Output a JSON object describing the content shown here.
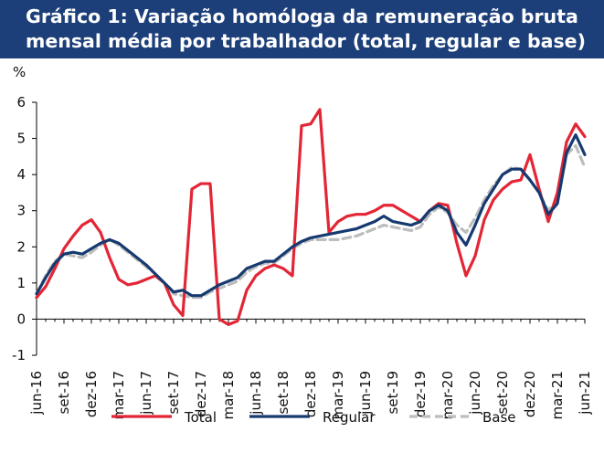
{
  "title": {
    "line1": "Gráfico 1: Variação homóloga da remuneração bruta",
    "line2": "mensal média por trabalhador (total, regular e base)"
  },
  "chart_data": {
    "type": "line",
    "ylabel": "%",
    "ylim": [
      -1,
      6
    ],
    "yticks": [
      -1,
      0,
      1,
      2,
      3,
      4,
      5,
      6
    ],
    "grid": false,
    "legend_position": "bottom",
    "x_tick_labels": [
      "jun-16",
      "set-16",
      "dez-16",
      "mar-17",
      "jun-17",
      "set-17",
      "dez-17",
      "mar-18",
      "jun-18",
      "set-18",
      "dez-18",
      "mar-19",
      "jun-19",
      "set-19",
      "dez-19",
      "mar-20",
      "jun-20",
      "set-20",
      "dez-20",
      "mar-21",
      "jun-21"
    ],
    "x": [
      "jun-16",
      "jul-16",
      "ago-16",
      "set-16",
      "out-16",
      "nov-16",
      "dez-16",
      "jan-17",
      "fev-17",
      "mar-17",
      "abr-17",
      "mai-17",
      "jun-17",
      "jul-17",
      "ago-17",
      "set-17",
      "out-17",
      "nov-17",
      "dez-17",
      "jan-18",
      "fev-18",
      "mar-18",
      "abr-18",
      "mai-18",
      "jun-18",
      "jul-18",
      "ago-18",
      "set-18",
      "out-18",
      "nov-18",
      "dez-18",
      "jan-19",
      "fev-19",
      "mar-19",
      "abr-19",
      "mai-19",
      "jun-19",
      "jul-19",
      "ago-19",
      "set-19",
      "out-19",
      "nov-19",
      "dez-19",
      "jan-20",
      "fev-20",
      "mar-20",
      "abr-20",
      "mai-20",
      "jun-20",
      "jul-20",
      "ago-20",
      "set-20",
      "out-20",
      "nov-20",
      "dez-20",
      "jan-21",
      "fev-21",
      "mar-21",
      "abr-21",
      "mai-21",
      "jun-21"
    ],
    "series": [
      {
        "name": "Total",
        "color": "#e32636",
        "dash": "solid",
        "values": [
          0.6,
          0.9,
          1.4,
          1.95,
          2.3,
          2.6,
          2.75,
          2.4,
          1.7,
          1.1,
          0.95,
          1.0,
          1.1,
          1.2,
          1.0,
          0.4,
          0.1,
          3.6,
          3.75,
          3.75,
          0.0,
          -0.15,
          -0.05,
          0.8,
          1.2,
          1.4,
          1.5,
          1.4,
          1.2,
          5.35,
          5.4,
          5.8,
          2.4,
          2.7,
          2.85,
          2.9,
          2.9,
          3.0,
          3.15,
          3.15,
          3.0,
          2.85,
          2.7,
          3.0,
          3.2,
          3.15,
          2.1,
          1.2,
          1.75,
          2.75,
          3.3,
          3.6,
          3.8,
          3.85,
          4.55,
          3.6,
          2.7,
          3.5,
          4.9,
          5.4,
          5.05
        ]
      },
      {
        "name": "Regular",
        "color": "#163a70",
        "dash": "solid",
        "values": [
          0.7,
          1.15,
          1.55,
          1.8,
          1.85,
          1.8,
          1.95,
          2.1,
          2.2,
          2.1,
          1.9,
          1.7,
          1.5,
          1.25,
          1.0,
          0.75,
          0.8,
          0.65,
          0.65,
          0.8,
          0.95,
          1.05,
          1.15,
          1.4,
          1.5,
          1.6,
          1.6,
          1.8,
          2.0,
          2.15,
          2.25,
          2.3,
          2.35,
          2.4,
          2.45,
          2.5,
          2.6,
          2.7,
          2.85,
          2.7,
          2.65,
          2.6,
          2.7,
          3.0,
          3.15,
          3.0,
          2.4,
          2.05,
          2.6,
          3.2,
          3.6,
          4.0,
          4.15,
          4.15,
          3.85,
          3.5,
          2.9,
          3.2,
          4.6,
          5.1,
          4.55
        ]
      },
      {
        "name": "Base",
        "color": "#bdbdbd",
        "dash": "dashed",
        "values": [
          0.7,
          1.2,
          1.6,
          1.8,
          1.75,
          1.7,
          1.85,
          2.05,
          2.2,
          2.05,
          1.85,
          1.65,
          1.45,
          1.25,
          1.0,
          0.7,
          0.65,
          0.6,
          0.6,
          0.75,
          0.85,
          0.95,
          1.05,
          1.3,
          1.45,
          1.55,
          1.55,
          1.75,
          1.95,
          2.1,
          2.2,
          2.2,
          2.2,
          2.2,
          2.25,
          2.3,
          2.4,
          2.5,
          2.6,
          2.55,
          2.5,
          2.45,
          2.55,
          2.9,
          3.1,
          2.95,
          2.6,
          2.4,
          2.8,
          3.3,
          3.7,
          4.0,
          4.2,
          4.15,
          3.85,
          3.5,
          3.0,
          3.3,
          4.55,
          4.8,
          4.2
        ]
      }
    ]
  }
}
